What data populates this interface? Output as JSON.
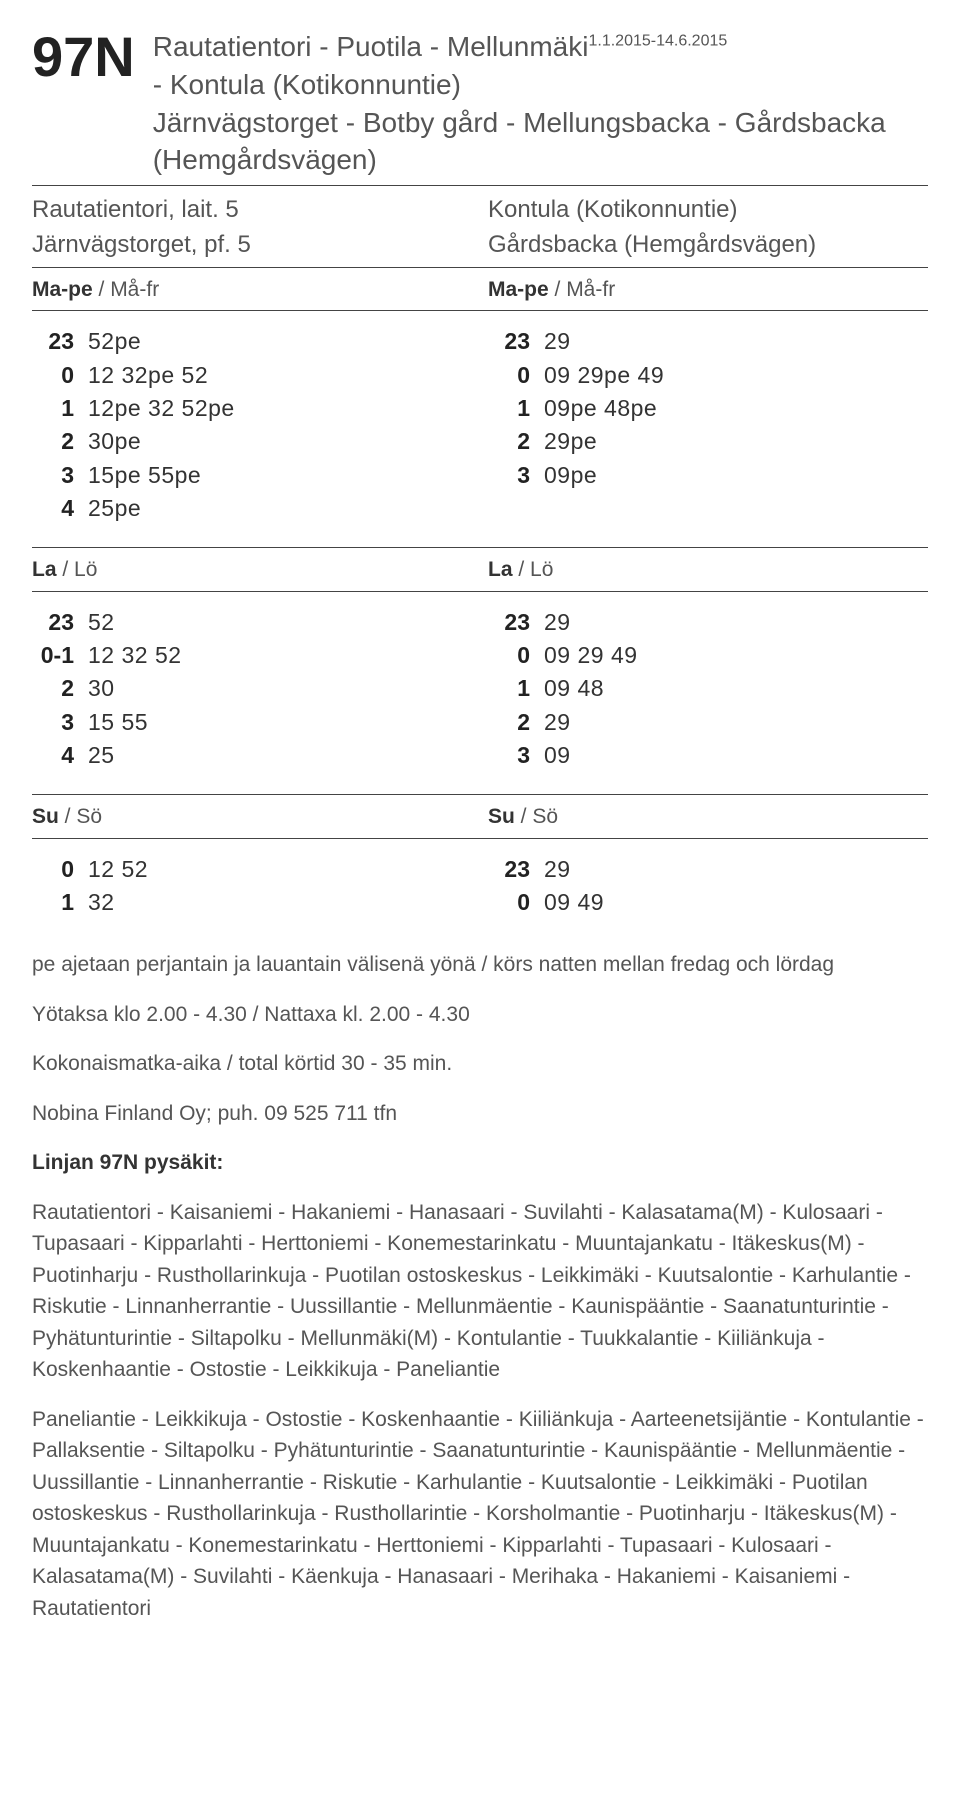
{
  "header": {
    "route_number": "97N",
    "title_line1": "Rautatientori - Puotila - Mellunmäki",
    "validity_sup": "1.1.2015-14.6.2015",
    "title_line2": "- Kontula (Kotikonnuntie)",
    "title_line3": "Järnvägstorget - Botby gård - Mellungsbacka - Gårdsbacka (Hemgårdsvägen)"
  },
  "stops_header": {
    "left_line1": "Rautatientori, lait. 5",
    "left_line2": "Järnvägstorget, pf. 5",
    "right_line1": "Kontula (Kotikonnuntie)",
    "right_line2": "Gårdsbacka (Hemgårdsvägen)"
  },
  "day_labels": {
    "mape_b": "Ma-pe",
    "mape_plain": " / Må-fr",
    "la_b": "La",
    "la_plain": " / Lö",
    "su_b": "Su",
    "su_plain": " / Sö"
  },
  "schedule": {
    "left_mape": [
      {
        "h": "23",
        "m": "52pe"
      },
      {
        "h": "0",
        "m": "12 32pe 52"
      },
      {
        "h": "1",
        "m": "12pe 32 52pe"
      },
      {
        "h": "2",
        "m": "30pe"
      },
      {
        "h": "3",
        "m": "15pe 55pe"
      },
      {
        "h": "4",
        "m": "25pe"
      }
    ],
    "right_mape": [
      {
        "h": "23",
        "m": "29"
      },
      {
        "h": "0",
        "m": "09 29pe 49"
      },
      {
        "h": "1",
        "m": "09pe 48pe"
      },
      {
        "h": "2",
        "m": "29pe"
      },
      {
        "h": "3",
        "m": "09pe"
      }
    ],
    "left_la": [
      {
        "h": "23",
        "m": "52"
      },
      {
        "h": "0-1",
        "m": "12 32 52"
      },
      {
        "h": "2",
        "m": "30"
      },
      {
        "h": "3",
        "m": "15 55"
      },
      {
        "h": "4",
        "m": "25"
      }
    ],
    "right_la": [
      {
        "h": "23",
        "m": "29"
      },
      {
        "h": "0",
        "m": "09 29 49"
      },
      {
        "h": "1",
        "m": "09 48"
      },
      {
        "h": "2",
        "m": "29"
      },
      {
        "h": "3",
        "m": "09"
      }
    ],
    "left_su": [
      {
        "h": "0",
        "m": "12 52"
      },
      {
        "h": "1",
        "m": "32"
      }
    ],
    "right_su": [
      {
        "h": "23",
        "m": "29"
      },
      {
        "h": "0",
        "m": "09 49"
      }
    ]
  },
  "notes": {
    "n1": "pe ajetaan perjantain ja lauantain välisenä yönä / körs natten mellan fredag och lördag",
    "n2": "Yötaksa klo 2.00 - 4.30 / Nattaxa kl. 2.00 - 4.30",
    "n3": "Kokonaismatka-aika / total körtid 30 - 35 min.",
    "n4": "Nobina Finland Oy; puh. 09 525 711 tfn"
  },
  "stops": {
    "title": "Linjan 97N pysäkit:",
    "block1": "Rautatientori - Kaisaniemi - Hakaniemi - Hanasaari - Suvilahti - Kalasatama(M) - Kulosaari - Tupasaari - Kipparlahti - Herttoniemi - Konemestarinkatu - Muuntajankatu - Itäkeskus(M) - Puotinharju - Rusthollarinkuja - Puotilan ostoskeskus - Leikkimäki - Kuutsalontie - Karhulantie - Riskutie - Linnanherrantie - Uussillantie - Mellunmäentie - Kaunispääntie - Saanatunturintie - Pyhätunturintie - Siltapolku - Mellunmäki(M) - Kontulantie - Tuukkalantie - Kiiliänkuja - Koskenhaantie - Ostostie - Leikkikuja - Paneliantie",
    "block2": "Paneliantie - Leikkikuja - Ostostie - Koskenhaantie - Kiiliänkuja - Aarteenetsijäntie - Kontulantie - Pallaksentie - Siltapolku - Pyhätunturintie - Saanatunturintie - Kaunispääntie - Mellunmäentie - Uussillantie - Linnanherrantie - Riskutie - Karhulantie - Kuutsalontie - Leikkimäki - Puotilan ostoskeskus - Rusthollarinkuja - Rusthollarintie - Korsholmantie - Puotinharju - Itäkeskus(M) - Muuntajankatu - Konemestarinkatu - Herttoniemi - Kipparlahti - Tupasaari - Kulosaari - Kalasatama(M) - Suvilahti - Käenkuja - Hanasaari - Merihaka - Hakaniemi - Kaisaniemi - Rautatientori"
  }
}
